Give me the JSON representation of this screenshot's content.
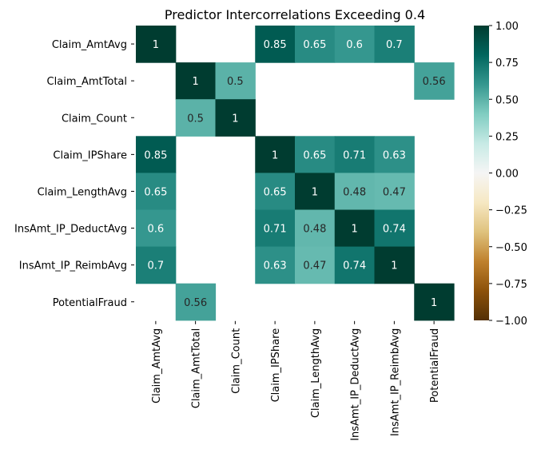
{
  "chart_data": {
    "type": "heatmap",
    "title": "Predictor Intercorrelations Exceeding 0.4",
    "variables": [
      "Claim_AmtAvg",
      "Claim_AmtTotal",
      "Claim_Count",
      "Claim_IPShare",
      "Claim_LengthAvg",
      "InsAmt_IP_DeductAvg",
      "InsAmt_IP_ReimbAvg",
      "PotentialFraud"
    ],
    "matrix": [
      [
        1,
        null,
        null,
        0.85,
        0.65,
        0.6,
        0.7,
        null
      ],
      [
        null,
        1,
        0.5,
        null,
        null,
        null,
        null,
        0.56
      ],
      [
        null,
        0.5,
        1,
        null,
        null,
        null,
        null,
        null
      ],
      [
        0.85,
        null,
        null,
        1,
        0.65,
        0.71,
        0.63,
        null
      ],
      [
        0.65,
        null,
        null,
        0.65,
        1,
        0.48,
        0.47,
        null
      ],
      [
        0.6,
        null,
        null,
        0.71,
        0.48,
        1,
        0.74,
        null
      ],
      [
        0.7,
        null,
        null,
        0.63,
        0.47,
        0.74,
        1,
        null
      ],
      [
        null,
        0.56,
        null,
        null,
        null,
        null,
        null,
        1
      ]
    ],
    "vmin": -1,
    "vmax": 1,
    "colormap": "BrBG",
    "colorbar_ticks": [
      "1.00",
      "0.75",
      "0.50",
      "0.25",
      "0.00",
      "−0.25",
      "−0.50",
      "−0.75",
      "−1.00"
    ]
  }
}
